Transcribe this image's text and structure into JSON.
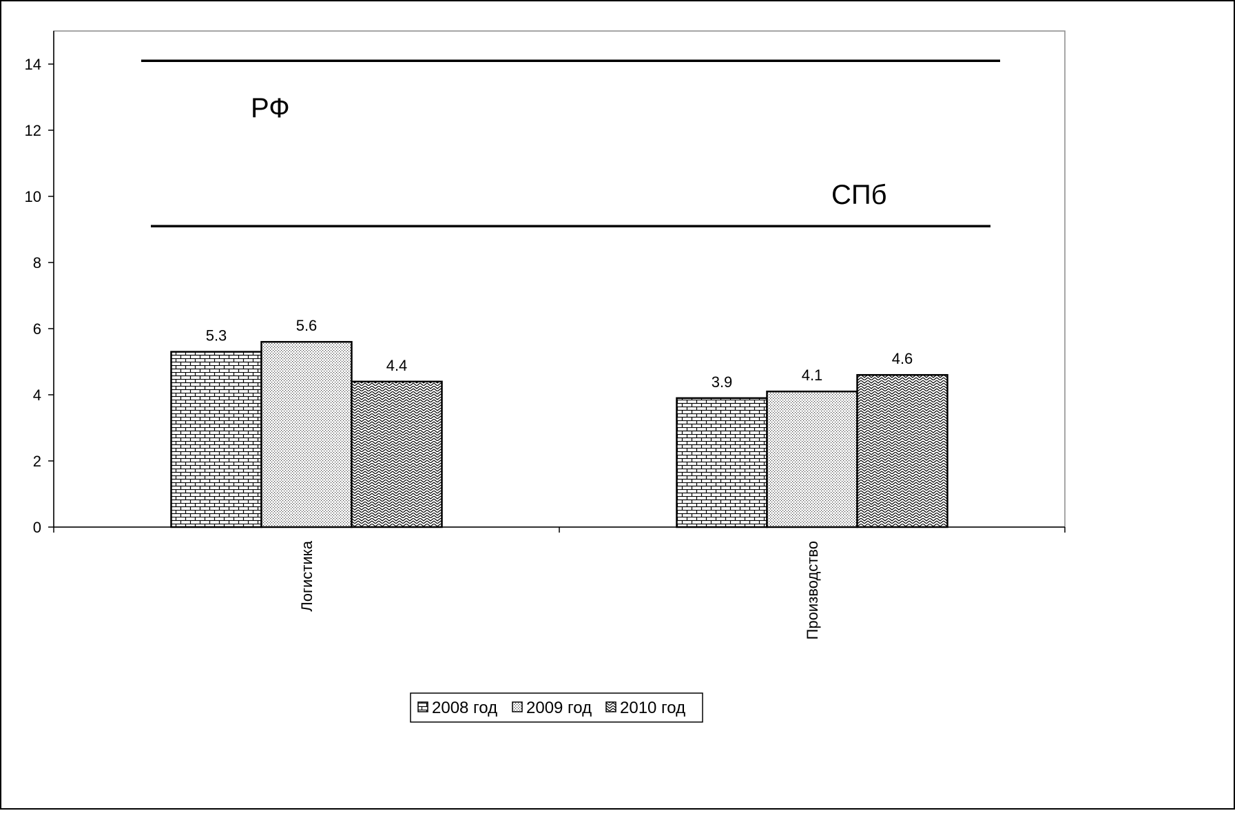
{
  "chart_data": {
    "type": "bar",
    "categories": [
      "Логистика",
      "Производство"
    ],
    "series": [
      {
        "name": "2008 год",
        "values": [
          5.3,
          3.9
        ],
        "pattern": "brick"
      },
      {
        "name": "2009 год",
        "values": [
          5.6,
          4.1
        ],
        "pattern": "dots"
      },
      {
        "name": "2010 год",
        "values": [
          4.4,
          4.6
        ],
        "pattern": "zigzag"
      }
    ],
    "data_labels": [
      [
        "5.3",
        "3.9"
      ],
      [
        "5.6",
        "4.1"
      ],
      [
        "4.4",
        "4.6"
      ]
    ],
    "ylim": [
      0,
      15
    ],
    "yticks": [
      0,
      2,
      4,
      6,
      8,
      10,
      12,
      14
    ],
    "reference_lines": [
      {
        "value": 14.1,
        "label": "РФ"
      },
      {
        "value": 9.1,
        "label": "СПб"
      }
    ],
    "legend_position": "bottom",
    "grid": false,
    "xlabel": "",
    "ylabel": "",
    "title": ""
  }
}
